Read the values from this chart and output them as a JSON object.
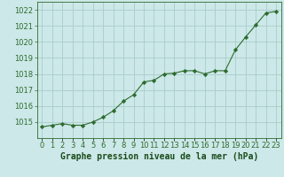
{
  "x": [
    0,
    1,
    2,
    3,
    4,
    5,
    6,
    7,
    8,
    9,
    10,
    11,
    12,
    13,
    14,
    15,
    16,
    17,
    18,
    19,
    20,
    21,
    22,
    23
  ],
  "y": [
    1014.7,
    1014.8,
    1014.9,
    1014.8,
    1014.8,
    1015.0,
    1015.3,
    1015.7,
    1016.3,
    1016.7,
    1017.5,
    1017.6,
    1018.0,
    1018.05,
    1018.2,
    1018.2,
    1018.0,
    1018.2,
    1018.2,
    1019.5,
    1020.3,
    1021.05,
    1021.8,
    1021.9
  ],
  "line_color": "#2e6b2e",
  "marker": "D",
  "marker_size": 2.2,
  "bg_color": "#cce8e8",
  "grid_color": "#aacccc",
  "xlabel": "Graphe pression niveau de la mer (hPa)",
  "xlabel_color": "#1a4a1a",
  "tick_color": "#2e6b2e",
  "ylim": [
    1014.0,
    1022.5
  ],
  "yticks": [
    1015,
    1016,
    1017,
    1018,
    1019,
    1020,
    1021,
    1022
  ],
  "xlim": [
    -0.5,
    23.5
  ],
  "font_size": 6.0,
  "label_font_size": 7.0
}
